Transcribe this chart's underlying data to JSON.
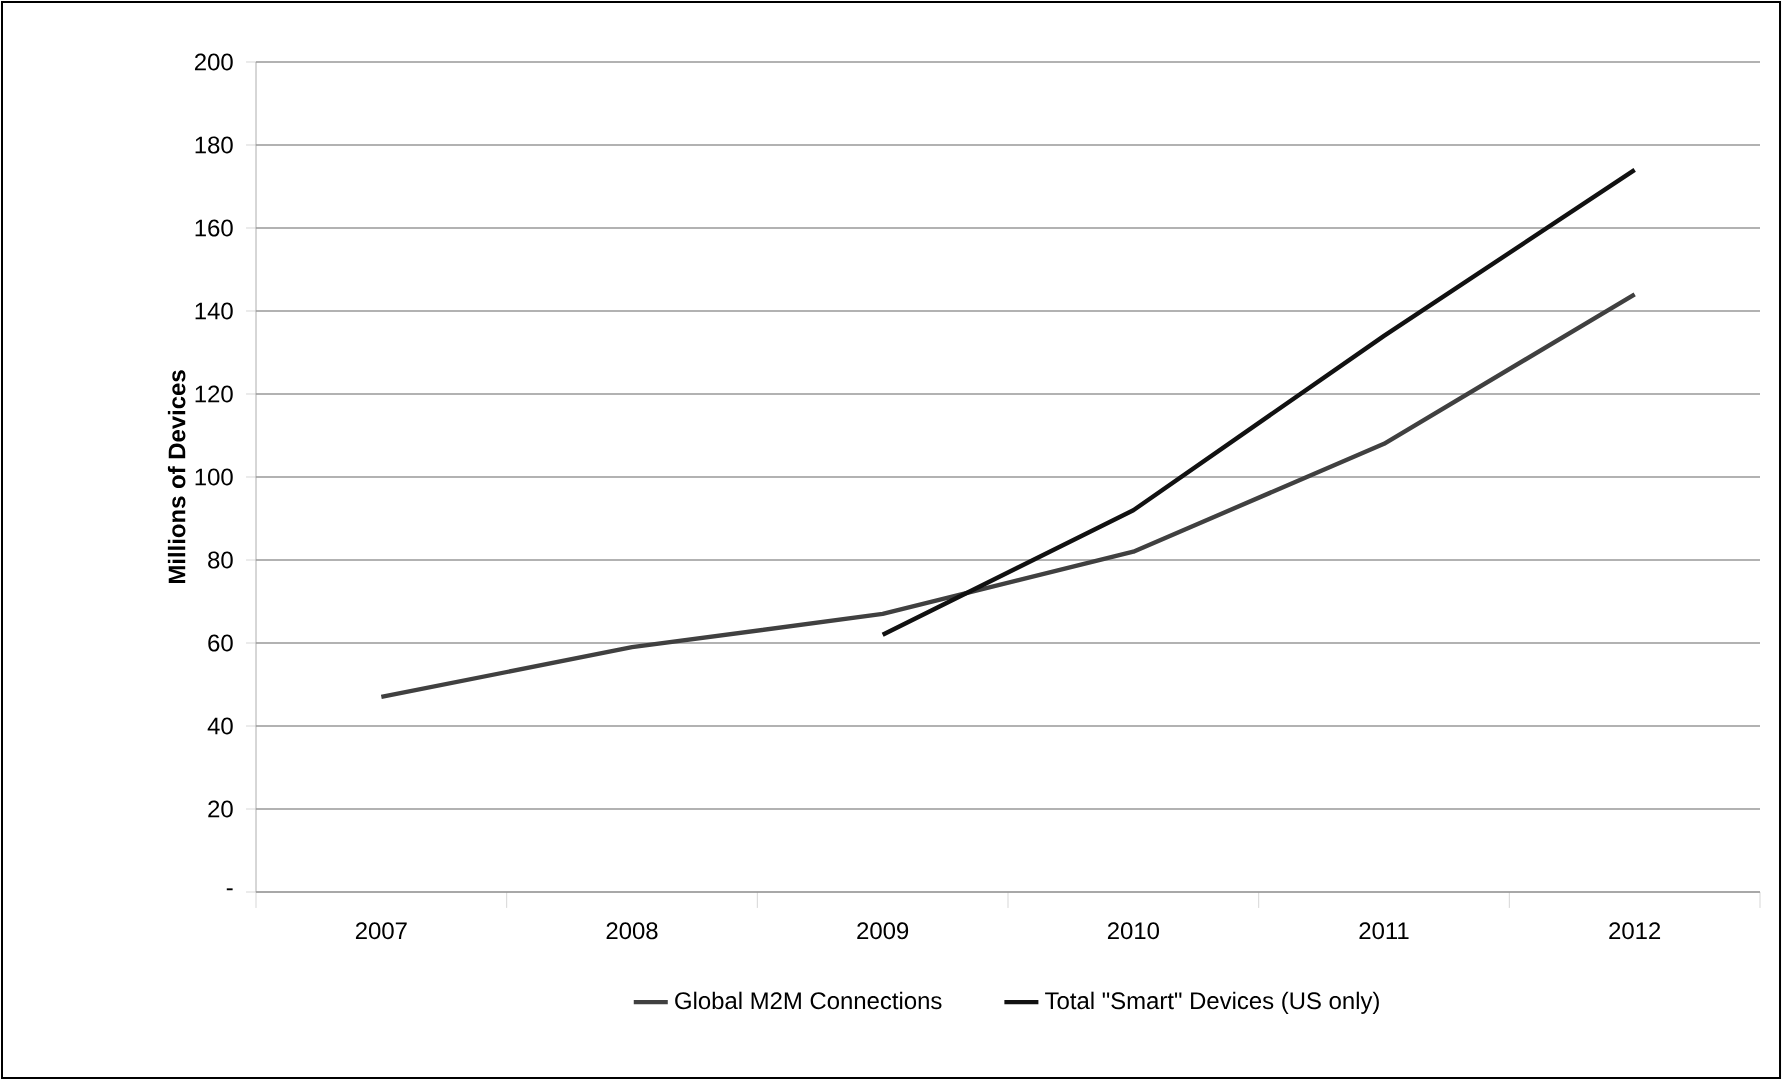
{
  "chart_data": {
    "type": "line",
    "ylabel": "Millions of Devices",
    "categories": [
      "2007",
      "2008",
      "2009",
      "2010",
      "2011",
      "2012"
    ],
    "series": [
      {
        "name": "Global M2M Connections",
        "color": "#404040",
        "values": [
          47,
          59,
          67,
          82,
          108,
          144
        ]
      },
      {
        "name": "Total \"Smart\" Devices (US only)",
        "color": "#111111",
        "values": [
          null,
          null,
          62,
          92,
          134,
          174
        ]
      }
    ],
    "ylim": [
      0,
      200
    ],
    "yticks": [
      {
        "value": 0,
        "label": "-"
      },
      20,
      40,
      60,
      80,
      100,
      120,
      140,
      160,
      180,
      200
    ],
    "grid": "y",
    "legend": "bottom",
    "marker": "none",
    "line_style": "solid"
  }
}
